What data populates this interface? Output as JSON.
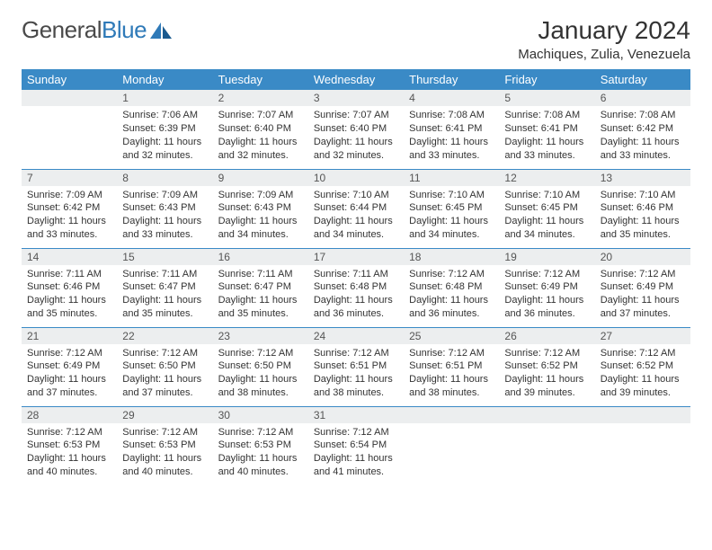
{
  "brand": {
    "word1": "General",
    "word2": "Blue"
  },
  "title": "January 2024",
  "location": "Machiques, Zulia, Venezuela",
  "colors": {
    "header_bg": "#3a8ac6",
    "header_text": "#ffffff",
    "daynum_bg": "#eceeef",
    "rule": "#3a8ac6",
    "text": "#333333",
    "logo_gray": "#4a4a4a",
    "logo_blue": "#2f7ab8"
  },
  "day_headers": [
    "Sunday",
    "Monday",
    "Tuesday",
    "Wednesday",
    "Thursday",
    "Friday",
    "Saturday"
  ],
  "weeks": [
    [
      {
        "n": ""
      },
      {
        "n": "1",
        "sr": "7:06 AM",
        "ss": "6:39 PM",
        "dl": "11 hours and 32 minutes."
      },
      {
        "n": "2",
        "sr": "7:07 AM",
        "ss": "6:40 PM",
        "dl": "11 hours and 32 minutes."
      },
      {
        "n": "3",
        "sr": "7:07 AM",
        "ss": "6:40 PM",
        "dl": "11 hours and 32 minutes."
      },
      {
        "n": "4",
        "sr": "7:08 AM",
        "ss": "6:41 PM",
        "dl": "11 hours and 33 minutes."
      },
      {
        "n": "5",
        "sr": "7:08 AM",
        "ss": "6:41 PM",
        "dl": "11 hours and 33 minutes."
      },
      {
        "n": "6",
        "sr": "7:08 AM",
        "ss": "6:42 PM",
        "dl": "11 hours and 33 minutes."
      }
    ],
    [
      {
        "n": "7",
        "sr": "7:09 AM",
        "ss": "6:42 PM",
        "dl": "11 hours and 33 minutes."
      },
      {
        "n": "8",
        "sr": "7:09 AM",
        "ss": "6:43 PM",
        "dl": "11 hours and 33 minutes."
      },
      {
        "n": "9",
        "sr": "7:09 AM",
        "ss": "6:43 PM",
        "dl": "11 hours and 34 minutes."
      },
      {
        "n": "10",
        "sr": "7:10 AM",
        "ss": "6:44 PM",
        "dl": "11 hours and 34 minutes."
      },
      {
        "n": "11",
        "sr": "7:10 AM",
        "ss": "6:45 PM",
        "dl": "11 hours and 34 minutes."
      },
      {
        "n": "12",
        "sr": "7:10 AM",
        "ss": "6:45 PM",
        "dl": "11 hours and 34 minutes."
      },
      {
        "n": "13",
        "sr": "7:10 AM",
        "ss": "6:46 PM",
        "dl": "11 hours and 35 minutes."
      }
    ],
    [
      {
        "n": "14",
        "sr": "7:11 AM",
        "ss": "6:46 PM",
        "dl": "11 hours and 35 minutes."
      },
      {
        "n": "15",
        "sr": "7:11 AM",
        "ss": "6:47 PM",
        "dl": "11 hours and 35 minutes."
      },
      {
        "n": "16",
        "sr": "7:11 AM",
        "ss": "6:47 PM",
        "dl": "11 hours and 35 minutes."
      },
      {
        "n": "17",
        "sr": "7:11 AM",
        "ss": "6:48 PM",
        "dl": "11 hours and 36 minutes."
      },
      {
        "n": "18",
        "sr": "7:12 AM",
        "ss": "6:48 PM",
        "dl": "11 hours and 36 minutes."
      },
      {
        "n": "19",
        "sr": "7:12 AM",
        "ss": "6:49 PM",
        "dl": "11 hours and 36 minutes."
      },
      {
        "n": "20",
        "sr": "7:12 AM",
        "ss": "6:49 PM",
        "dl": "11 hours and 37 minutes."
      }
    ],
    [
      {
        "n": "21",
        "sr": "7:12 AM",
        "ss": "6:49 PM",
        "dl": "11 hours and 37 minutes."
      },
      {
        "n": "22",
        "sr": "7:12 AM",
        "ss": "6:50 PM",
        "dl": "11 hours and 37 minutes."
      },
      {
        "n": "23",
        "sr": "7:12 AM",
        "ss": "6:50 PM",
        "dl": "11 hours and 38 minutes."
      },
      {
        "n": "24",
        "sr": "7:12 AM",
        "ss": "6:51 PM",
        "dl": "11 hours and 38 minutes."
      },
      {
        "n": "25",
        "sr": "7:12 AM",
        "ss": "6:51 PM",
        "dl": "11 hours and 38 minutes."
      },
      {
        "n": "26",
        "sr": "7:12 AM",
        "ss": "6:52 PM",
        "dl": "11 hours and 39 minutes."
      },
      {
        "n": "27",
        "sr": "7:12 AM",
        "ss": "6:52 PM",
        "dl": "11 hours and 39 minutes."
      }
    ],
    [
      {
        "n": "28",
        "sr": "7:12 AM",
        "ss": "6:53 PM",
        "dl": "11 hours and 40 minutes."
      },
      {
        "n": "29",
        "sr": "7:12 AM",
        "ss": "6:53 PM",
        "dl": "11 hours and 40 minutes."
      },
      {
        "n": "30",
        "sr": "7:12 AM",
        "ss": "6:53 PM",
        "dl": "11 hours and 40 minutes."
      },
      {
        "n": "31",
        "sr": "7:12 AM",
        "ss": "6:54 PM",
        "dl": "11 hours and 41 minutes."
      },
      {
        "n": ""
      },
      {
        "n": ""
      },
      {
        "n": ""
      }
    ]
  ],
  "labels": {
    "sunrise": "Sunrise: ",
    "sunset": "Sunset: ",
    "daylight": "Daylight: "
  }
}
